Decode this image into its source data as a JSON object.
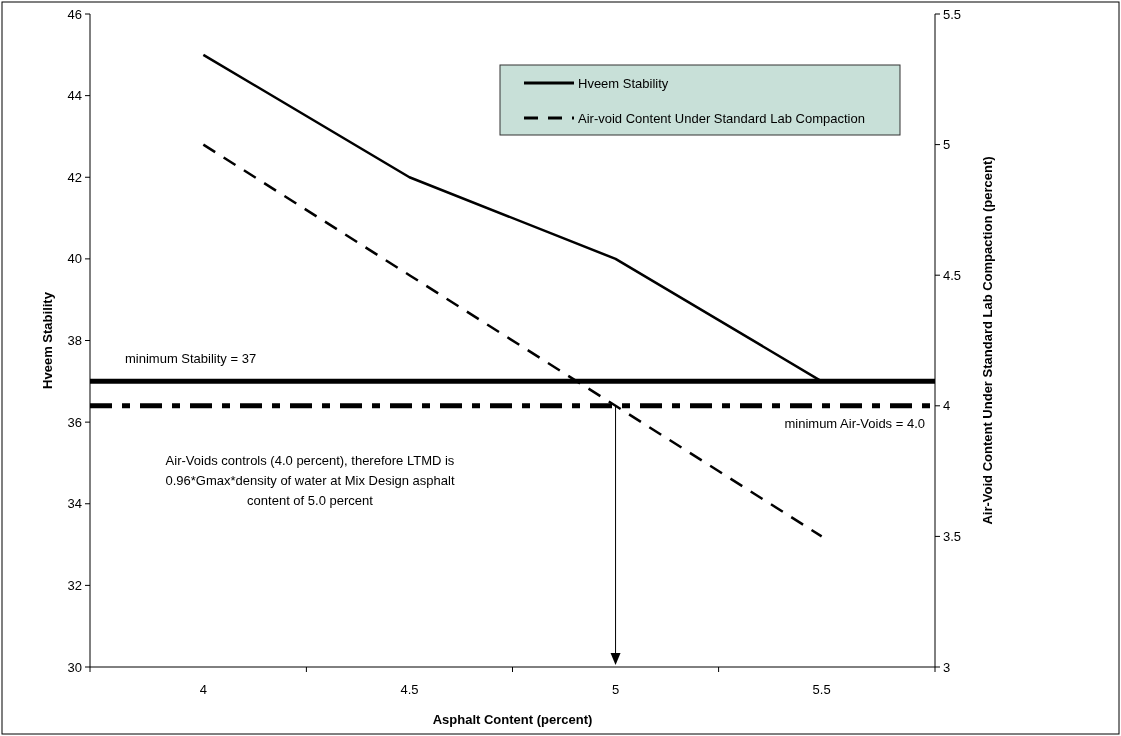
{
  "chart_data": {
    "type": "line",
    "categories": [
      "4",
      "4.5",
      "5",
      "5.5"
    ],
    "xlabel": "Asphalt Content (percent)",
    "ylabel": "Hveem Stability",
    "y2label": "Air-Void Content Under Standard Lab Compaction (percent)",
    "ylim": [
      30,
      46
    ],
    "yticks": [
      30,
      32,
      34,
      36,
      38,
      40,
      42,
      44,
      46
    ],
    "y2lim": [
      3,
      5.5
    ],
    "y2ticks": [
      3,
      3.5,
      4,
      4.5,
      5,
      5.5
    ],
    "series": [
      {
        "name": "Hveem Stability",
        "color": "#000000",
        "values": [
          45,
          42,
          40,
          37
        ],
        "line_style": "solid"
      },
      {
        "name": "Air-void Content Under Standard Lab Compaction",
        "color": "#000000",
        "values": [
          5,
          4.5,
          4,
          3.5
        ],
        "axis": "y2",
        "line_style": "dashed"
      }
    ],
    "ref_lines": [
      {
        "axis": "y",
        "value": 37,
        "label": "minimum Stability = 37",
        "color": "#000000",
        "line_style": "solid"
      },
      {
        "axis": "y2",
        "value": 4,
        "label": "minimum Air-Voids  = 4.0",
        "color": "#000000",
        "line_style": "dashed"
      }
    ],
    "annotations": [
      "Air-Voids controls (4.0 percent), therefore LTMD is 0.96*Gmax*density of water at Mix Design asphalt content of 5.0 percent"
    ],
    "legend": "top right",
    "marker": "none",
    "grid": false
  }
}
